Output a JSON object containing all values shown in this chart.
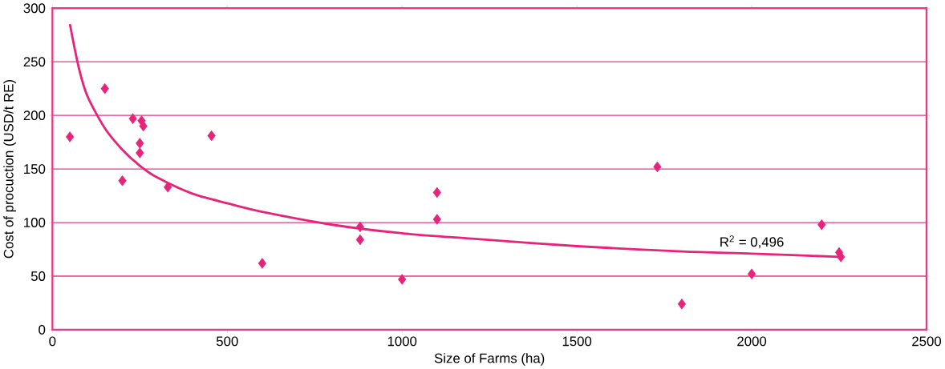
{
  "chart_data": {
    "type": "scatter",
    "xlabel": "Size of Farms (ha)",
    "ylabel": "Cost of procuction (USD/t RE)",
    "xlim": [
      0,
      2500
    ],
    "ylim": [
      0,
      300
    ],
    "xticks": [
      0,
      500,
      1000,
      1500,
      2000,
      2500
    ],
    "yticks": [
      0,
      50,
      100,
      150,
      200,
      250,
      300
    ],
    "grid": "y",
    "marker": "diamond",
    "annotations": [
      "R$^{2}$ = 0,496"
    ],
    "series": [
      {
        "color": "#e6247a",
        "x": [
          50,
          150,
          200,
          230,
          250,
          250,
          255,
          260,
          330,
          455,
          600,
          880,
          880,
          1000,
          1100,
          1100,
          1730,
          1800,
          2000,
          2200,
          2250,
          2255
        ],
        "values": [
          180,
          225,
          139,
          197,
          174,
          165,
          195,
          190,
          133,
          181,
          62,
          96,
          84,
          47,
          128,
          103,
          152,
          24,
          52,
          98,
          72,
          68
        ]
      },
      {
        "type": "line",
        "color": "#e6247a",
        "marker": "none",
        "line_style": "solid",
        "x": [
          50,
          75,
          100,
          150,
          200,
          250,
          300,
          400,
          500,
          600,
          800,
          1000,
          1200,
          1500,
          1800,
          2000,
          2250
        ],
        "values": [
          285,
          245,
          218,
          188,
          168,
          153,
          142,
          127,
          118,
          110,
          98,
          90,
          85,
          78,
          73,
          71,
          68
        ]
      }
    ]
  }
}
